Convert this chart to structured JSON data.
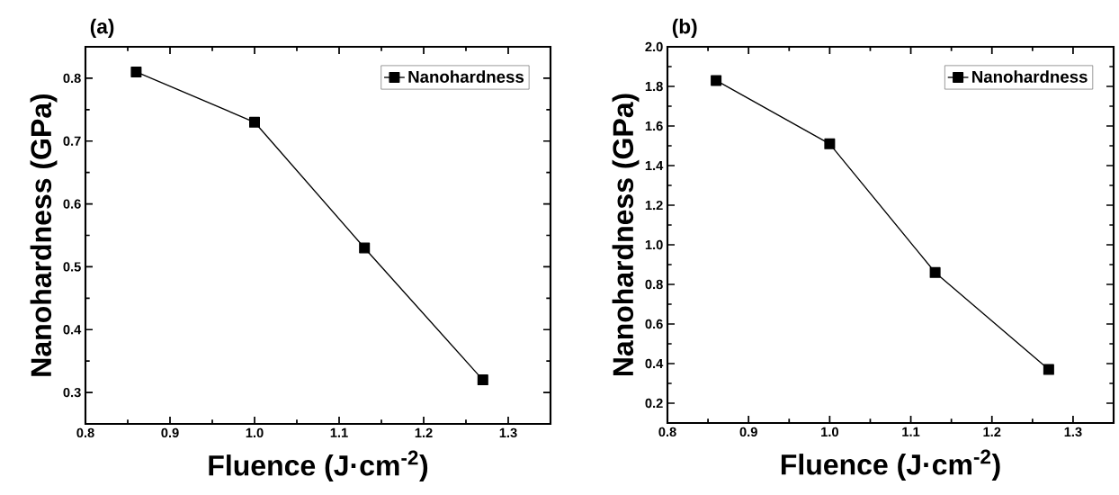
{
  "chart_data": [
    {
      "type": "line",
      "title": "(a)",
      "xlabel": "Fluence (J·cm$^{-2}$)",
      "ylabel": "Nanohardness (GPa)",
      "x": [
        0.86,
        1.0,
        1.13,
        1.27
      ],
      "series": [
        {
          "name": "Nanohardness",
          "color": "#000000",
          "values": [
            0.81,
            0.73,
            0.53,
            0.32
          ]
        }
      ],
      "xlim": [
        0.8,
        1.35
      ],
      "ylim": [
        0.25,
        0.85
      ],
      "xticks": [
        0.8,
        0.9,
        {
          "value": 1.0,
          "label": "1.0"
        },
        1.1,
        1.2,
        1.3
      ],
      "yticks": [
        0.3,
        0.4,
        0.5,
        0.6,
        0.7,
        0.8
      ],
      "legend": "top right",
      "marker": "square",
      "line_style": "solid"
    },
    {
      "type": "line",
      "title": "(b)",
      "xlabel": "Fluence (J·cm$^{-2}$)",
      "ylabel": "Nanohardness (GPa)",
      "x": [
        0.86,
        1.0,
        1.13,
        1.27
      ],
      "series": [
        {
          "name": "Nanohardness",
          "color": "#000000",
          "values": [
            1.83,
            1.51,
            0.86,
            0.37
          ]
        }
      ],
      "xlim": [
        0.8,
        1.35
      ],
      "ylim": [
        0.1,
        2.0
      ],
      "xticks": [
        0.8,
        0.9,
        {
          "value": 1.0,
          "label": "1.0"
        },
        1.1,
        1.2,
        1.3
      ],
      "yticks": [
        0.2,
        0.4,
        0.6,
        0.8,
        {
          "value": 1.0,
          "label": "1.0"
        },
        1.2,
        1.4,
        1.6,
        1.8,
        {
          "value": 2.0,
          "label": "2.0"
        }
      ],
      "legend": "top right",
      "marker": "square",
      "line_style": "solid"
    }
  ]
}
